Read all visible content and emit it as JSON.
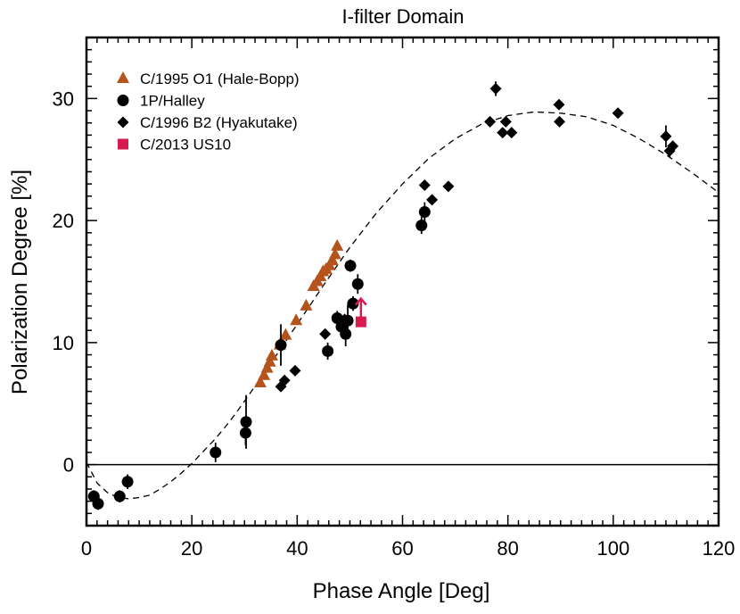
{
  "chart_data": {
    "type": "scatter",
    "title": "I-filter Domain",
    "xlabel": "Phase Angle [Deg]",
    "ylabel": "Polarization Degree [%]",
    "xlim": [
      0,
      120
    ],
    "ylim": [
      -5,
      35
    ],
    "xticks": [
      0,
      20,
      40,
      60,
      80,
      100,
      120
    ],
    "yticks": [
      0,
      10,
      20,
      30
    ],
    "xtick_labels": [
      "0",
      "20",
      "40",
      "60",
      "80",
      "100",
      "120"
    ],
    "ytick_labels": [
      "0",
      "10",
      "20",
      "30"
    ],
    "zero_line": 0,
    "legend_position": "top-left",
    "series": [
      {
        "name": "C/1995 O1 (Hale-Bopp)",
        "marker": "triangle",
        "color": "#b5531c",
        "x": [
          33.0,
          33.7,
          34.3,
          34.8,
          35.2,
          36.7,
          37.8,
          39.8,
          41.7,
          43.1,
          43.8,
          44.4,
          44.9,
          45.5,
          46.1,
          46.7,
          47.2,
          47.6
        ],
        "y": [
          6.7,
          7.3,
          7.9,
          8.4,
          8.9,
          9.8,
          10.6,
          11.8,
          13.0,
          14.6,
          15.0,
          15.4,
          15.8,
          16.0,
          16.3,
          16.7,
          17.2,
          17.9
        ]
      },
      {
        "name": "1P/Halley",
        "marker": "circle",
        "color": "#000000",
        "x": [
          1.4,
          2.2,
          6.3,
          7.8,
          24.5,
          30.2,
          30.3,
          36.9,
          45.8,
          47.6,
          48.4,
          49.2,
          49.6,
          50.1,
          50.6,
          51.5,
          63.6,
          64.2
        ],
        "y": [
          -2.6,
          -3.2,
          -2.6,
          -1.4,
          1.0,
          2.6,
          3.5,
          9.8,
          9.3,
          12.0,
          11.3,
          10.7,
          11.8,
          16.3,
          13.2,
          14.8,
          19.6,
          20.7
        ],
        "errors": [
          0.5,
          0.5,
          0.5,
          0.6,
          0.8,
          1.0,
          2.2,
          1.7,
          0.7,
          0.6,
          0.8,
          1.0,
          1.3,
          0.5,
          0.6,
          0.8,
          0.7,
          0.8
        ]
      },
      {
        "name": "C/1996 B2 (Hyakutake)",
        "marker": "diamond",
        "color": "#000000",
        "x": [
          36.9,
          37.6,
          39.6,
          45.3,
          49.0,
          64.2,
          65.6,
          68.7,
          76.6,
          77.7,
          79.0,
          79.6,
          80.7,
          89.7,
          89.8,
          100.9,
          110.0,
          110.7,
          111.3
        ],
        "y": [
          6.4,
          6.9,
          7.7,
          10.7,
          11.9,
          22.9,
          21.7,
          22.8,
          28.1,
          30.8,
          27.2,
          28.1,
          27.2,
          29.5,
          28.1,
          28.8,
          26.9,
          25.7,
          26.1
        ],
        "errors": [
          0.4,
          0.3,
          0.3,
          0.3,
          0.3,
          0.3,
          0.3,
          0.3,
          0.3,
          0.6,
          0.3,
          0.4,
          0.4,
          0.3,
          0.3,
          0.3,
          0.9,
          0.5,
          0.3
        ]
      },
      {
        "name": "C/2013 US10",
        "marker": "square",
        "color": "#d81b4f",
        "x": [
          52.1
        ],
        "y": [
          11.7
        ],
        "lower_limit": true
      }
    ],
    "fit_curve": {
      "style": "dashed",
      "x": [
        0,
        2,
        4,
        6,
        8,
        10,
        12,
        14,
        16,
        18,
        20,
        22,
        24,
        26,
        28,
        30,
        35,
        40,
        45,
        50,
        55,
        60,
        65,
        70,
        75,
        80,
        85,
        90,
        95,
        100,
        105,
        110,
        115,
        120
      ],
      "y": [
        0.2,
        -1.5,
        -2.3,
        -2.7,
        -2.8,
        -2.7,
        -2.5,
        -2.0,
        -1.4,
        -0.7,
        0.1,
        1.0,
        1.9,
        2.9,
        4.0,
        5.2,
        8.3,
        11.5,
        14.7,
        17.8,
        20.6,
        23.0,
        25.1,
        26.7,
        27.9,
        28.6,
        28.9,
        28.8,
        28.5,
        27.8,
        26.7,
        25.4,
        23.9,
        22.3
      ]
    }
  }
}
